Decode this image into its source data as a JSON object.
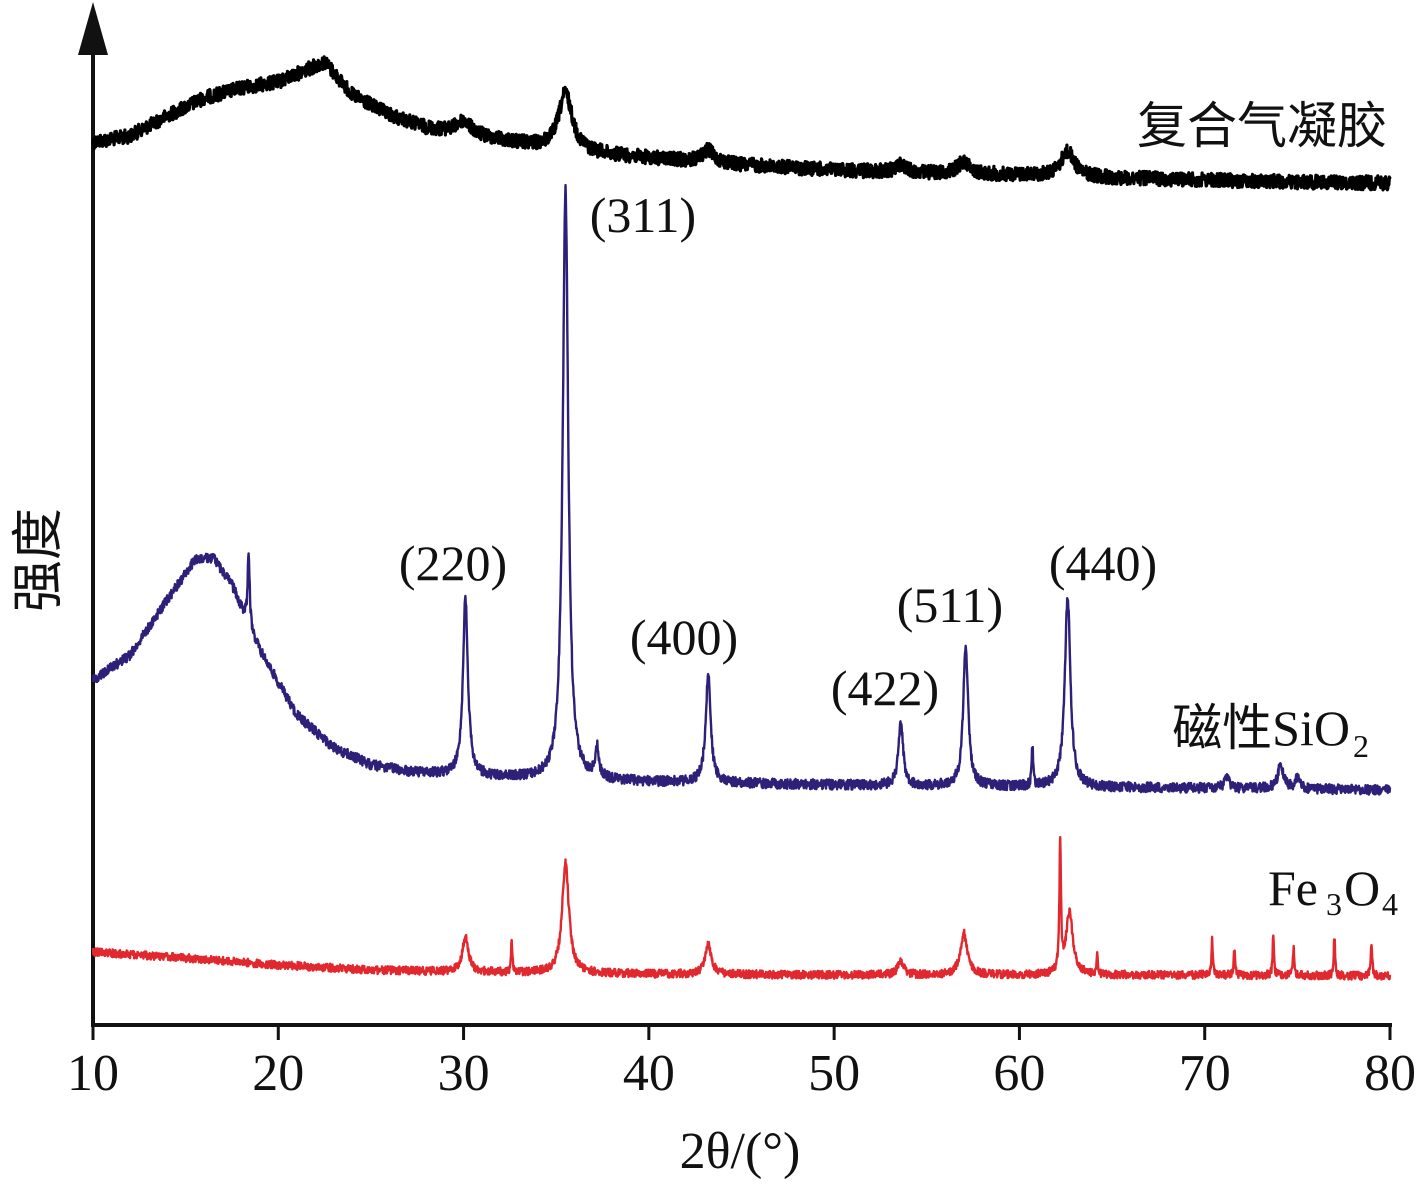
{
  "chart_data": {
    "type": "line",
    "xlabel": "2θ/(°)",
    "ylabel": "强度",
    "xlim": [
      10,
      80
    ],
    "x_ticks": [
      "10",
      "20",
      "30",
      "40",
      "50",
      "60",
      "70",
      "80"
    ],
    "y_ticks": [],
    "grid": false,
    "legend": "labels at right end of each curve",
    "series": [
      {
        "name": "复合气凝胶",
        "color": "#000000",
        "baseline": 183,
        "background": [
          [
            10,
            142
          ],
          [
            12,
            136
          ],
          [
            14,
            116
          ],
          [
            16,
            98
          ],
          [
            18,
            88
          ],
          [
            20,
            82
          ],
          [
            21.5,
            70
          ],
          [
            22.5,
            62
          ],
          [
            24,
            95
          ],
          [
            26,
            115
          ],
          [
            28,
            128
          ],
          [
            30,
            135
          ],
          [
            32,
            140
          ],
          [
            34,
            147
          ],
          [
            36,
            152
          ],
          [
            40,
            158
          ],
          [
            45,
            165
          ],
          [
            50,
            170
          ],
          [
            55,
            173
          ],
          [
            60,
            175
          ],
          [
            65,
            178
          ],
          [
            70,
            180
          ],
          [
            75,
            182
          ],
          [
            80,
            183
          ]
        ],
        "peaks": [
          {
            "x": 30.0,
            "height": 14,
            "width": 0.5
          },
          {
            "x": 35.5,
            "height": 58,
            "width": 0.45
          },
          {
            "x": 43.2,
            "height": 12,
            "width": 0.4
          },
          {
            "x": 53.6,
            "height": 8,
            "width": 0.3
          },
          {
            "x": 57.0,
            "height": 12,
            "width": 0.4
          },
          {
            "x": 62.6,
            "height": 25,
            "width": 0.45
          }
        ],
        "noise": 7
      },
      {
        "name": "磁性SiO2",
        "label_main": "磁性SiO",
        "label_sub": "2",
        "color": "#2e1f78",
        "baseline": 790,
        "background": [
          [
            10,
            680
          ],
          [
            12,
            655
          ],
          [
            14,
            600
          ],
          [
            15.5,
            560
          ],
          [
            16.5,
            558
          ],
          [
            17.5,
            585
          ],
          [
            19,
            650
          ],
          [
            21,
            715
          ],
          [
            23,
            748
          ],
          [
            25,
            765
          ],
          [
            27,
            772
          ],
          [
            30,
            776
          ],
          [
            35,
            780
          ],
          [
            40,
            782
          ],
          [
            50,
            785
          ],
          [
            60,
            787
          ],
          [
            70,
            788
          ],
          [
            80,
            790
          ]
        ],
        "peaks": [
          {
            "x": 18.4,
            "height": 75,
            "width": 0.06
          },
          {
            "x": 30.1,
            "height": 178,
            "width": 0.16
          },
          {
            "x": 35.5,
            "height": 590,
            "width": 0.18
          },
          {
            "x": 37.2,
            "height": 30,
            "width": 0.12
          },
          {
            "x": 43.2,
            "height": 108,
            "width": 0.16
          },
          {
            "x": 53.6,
            "height": 62,
            "width": 0.15
          },
          {
            "x": 57.1,
            "height": 140,
            "width": 0.16
          },
          {
            "x": 60.7,
            "height": 40,
            "width": 0.05
          },
          {
            "x": 62.6,
            "height": 192,
            "width": 0.18
          },
          {
            "x": 71.2,
            "height": 10,
            "width": 0.15
          },
          {
            "x": 74.1,
            "height": 24,
            "width": 0.18
          },
          {
            "x": 75.0,
            "height": 10,
            "width": 0.15
          }
        ],
        "noise": 5
      },
      {
        "name": "Fe3O4",
        "label_main": "Fe",
        "label_sub": "3",
        "label_tail": "O",
        "label_sub2": "4",
        "color": "#e0282e",
        "baseline": 975,
        "background": [
          [
            10,
            952
          ],
          [
            15,
            958
          ],
          [
            20,
            965
          ],
          [
            25,
            970
          ],
          [
            30,
            972
          ],
          [
            40,
            974
          ],
          [
            50,
            975
          ],
          [
            60,
            975
          ],
          [
            70,
            975
          ],
          [
            80,
            976
          ]
        ],
        "peaks": [
          {
            "x": 30.1,
            "height": 35,
            "width": 0.2
          },
          {
            "x": 32.6,
            "height": 33,
            "width": 0.04
          },
          {
            "x": 35.5,
            "height": 110,
            "width": 0.22
          },
          {
            "x": 43.2,
            "height": 30,
            "width": 0.2
          },
          {
            "x": 53.6,
            "height": 13,
            "width": 0.2
          },
          {
            "x": 57.0,
            "height": 42,
            "width": 0.22
          },
          {
            "x": 62.2,
            "height": 128,
            "width": 0.05
          },
          {
            "x": 62.7,
            "height": 62,
            "width": 0.22
          },
          {
            "x": 64.2,
            "height": 22,
            "width": 0.04
          },
          {
            "x": 70.4,
            "height": 35,
            "width": 0.04
          },
          {
            "x": 71.6,
            "height": 27,
            "width": 0.04
          },
          {
            "x": 73.7,
            "height": 40,
            "width": 0.04
          },
          {
            "x": 74.8,
            "height": 30,
            "width": 0.04
          },
          {
            "x": 77.0,
            "height": 40,
            "width": 0.04
          },
          {
            "x": 79.0,
            "height": 30,
            "width": 0.05
          }
        ],
        "noise": 4
      }
    ],
    "annotations": [
      {
        "text": "(311)",
        "x": 35.5
      },
      {
        "text": "(220)",
        "x": 30.1
      },
      {
        "text": "(400)",
        "x": 43.2
      },
      {
        "text": "(422)",
        "x": 53.6
      },
      {
        "text": "(511)",
        "x": 57.1
      },
      {
        "text": "(440)",
        "x": 62.6
      }
    ]
  }
}
